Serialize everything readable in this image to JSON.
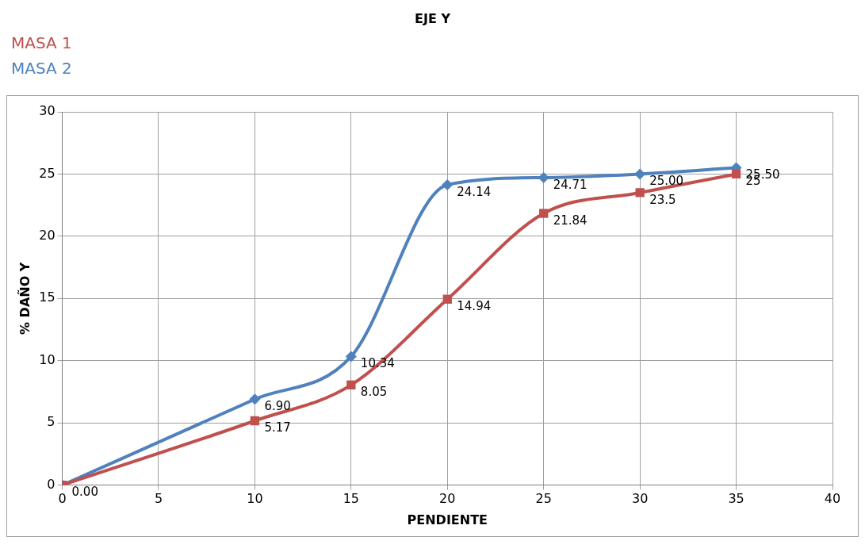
{
  "chart_data": {
    "type": "line",
    "title": "EJE Y",
    "xlabel": "PENDIENTE",
    "ylabel": "% DAÑO Y",
    "x": [
      0,
      10,
      15,
      20,
      25,
      30,
      35
    ],
    "xlim": [
      0,
      40
    ],
    "xticks": [
      0,
      5,
      10,
      15,
      20,
      25,
      30,
      35,
      40
    ],
    "ylim": [
      0,
      30
    ],
    "yticks": [
      0,
      5,
      10,
      15,
      20,
      25,
      30
    ],
    "grid": true,
    "legend": "top left",
    "series": [
      {
        "name": "MASA 1",
        "color": "#c0504d",
        "marker": "square",
        "values": [
          0,
          5.17,
          8.05,
          14.94,
          21.84,
          23.5,
          25
        ],
        "value_labels": [
          null,
          "5.17",
          "8.05",
          "14.94",
          "21.84",
          "23.5",
          "25"
        ]
      },
      {
        "name": "MASA 2",
        "color": "#4f81bd",
        "marker": "diamond",
        "values": [
          0,
          6.9,
          10.34,
          24.14,
          24.71,
          25,
          25.5
        ],
        "value_labels": [
          "0.00",
          "6.90",
          "10.34",
          "24.14",
          "24.71",
          "25.00",
          "25.50"
        ]
      }
    ]
  }
}
